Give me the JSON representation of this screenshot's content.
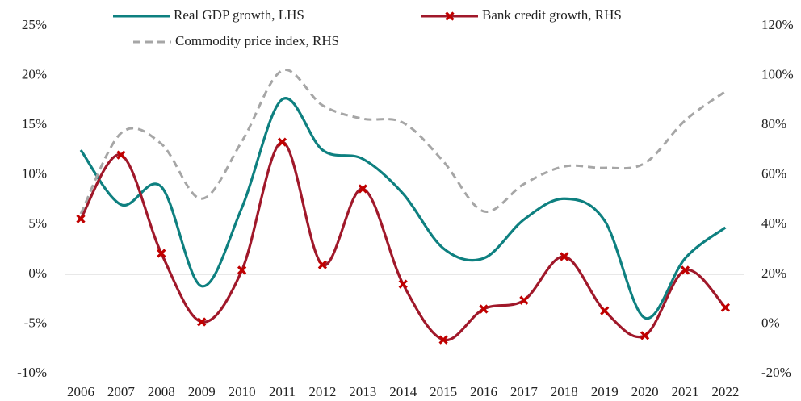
{
  "chart_data": {
    "type": "line",
    "categories": [
      "2006",
      "2007",
      "2008",
      "2009",
      "2010",
      "2011",
      "2012",
      "2013",
      "2014",
      "2015",
      "2016",
      "2017",
      "2018",
      "2019",
      "2020",
      "2021",
      "2022"
    ],
    "series": [
      {
        "name": "Real GDP growth, LHS",
        "color": "#0e8080",
        "axis": "y",
        "smooth": true,
        "values": [
          12.5,
          7.0,
          8.8,
          -1.2,
          6.7,
          17.6,
          12.5,
          11.6,
          8.1,
          2.6,
          1.6,
          5.5,
          7.6,
          5.4,
          -4.4,
          1.6,
          4.7
        ]
      },
      {
        "name": "Bank credit growth, RHS",
        "color": "#a0182a",
        "marker_color": "#c00000",
        "marker": "x",
        "axis": "y2",
        "smooth": true,
        "values": [
          42.3,
          68.0,
          28.4,
          0.8,
          21.6,
          73.2,
          23.8,
          54.4,
          16.0,
          -6.4,
          6.0,
          9.5,
          27.1,
          5.3,
          -4.7,
          21.6,
          6.6
        ]
      },
      {
        "name": "Commodity price index, RHS",
        "color": "#a6a6a6",
        "dash": true,
        "axis": "y2",
        "smooth": true,
        "values": [
          44.3,
          76.8,
          72.5,
          50.4,
          73.5,
          102.0,
          88.0,
          82.6,
          81.0,
          65.4,
          45.3,
          56.3,
          63.4,
          62.8,
          64.7,
          81.9,
          93.6
        ]
      }
    ],
    "ylim": [
      -10,
      25
    ],
    "yticks": [
      {
        "value": -10,
        "label": "-10%"
      },
      {
        "value": -5,
        "label": "-5%"
      },
      {
        "value": 0,
        "label": "0%"
      },
      {
        "value": 5,
        "label": "5%"
      },
      {
        "value": 10,
        "label": "10%"
      },
      {
        "value": 15,
        "label": "15%"
      },
      {
        "value": 20,
        "label": "20%"
      },
      {
        "value": 25,
        "label": "25%"
      }
    ],
    "y2lim": [
      -20,
      120
    ],
    "y2ticks": [
      {
        "value": -20,
        "label": "-20%"
      },
      {
        "value": 0,
        "label": "0%"
      },
      {
        "value": 20,
        "label": "20%"
      },
      {
        "value": 40,
        "label": "40%"
      },
      {
        "value": 60,
        "label": "60%"
      },
      {
        "value": 80,
        "label": "80%"
      },
      {
        "value": 100,
        "label": "100%"
      },
      {
        "value": 120,
        "label": "120%"
      }
    ],
    "grid": false,
    "legend": "top"
  }
}
